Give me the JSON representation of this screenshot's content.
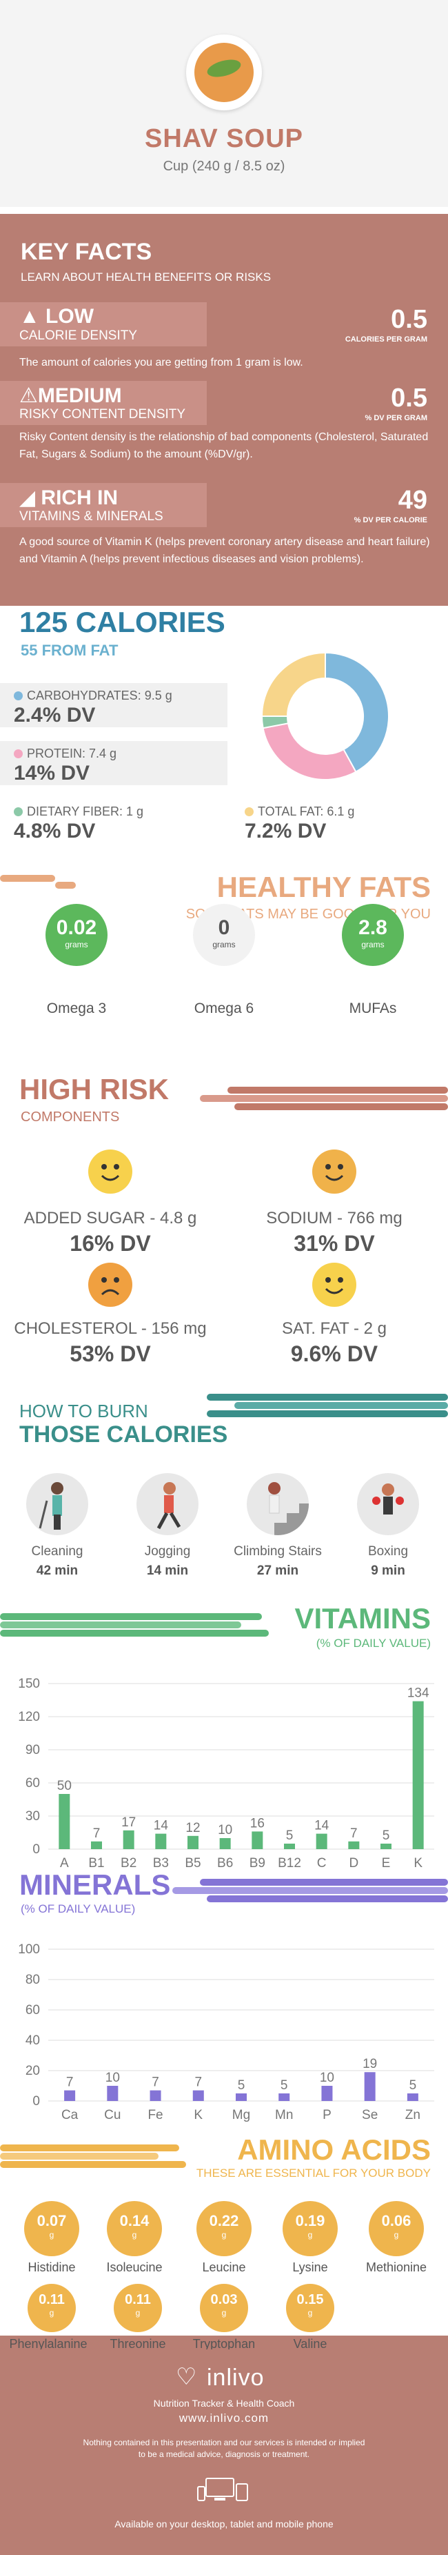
{
  "hero": {
    "title": "SHAV SOUP",
    "serving": "Cup (240 g / 8.5 oz)"
  },
  "key_facts": {
    "heading": "KEY FACTS",
    "subheading": "LEARN ABOUT HEALTH BENEFITS OR RISKS",
    "items": [
      {
        "level": "LOW",
        "label": "CALORIE DENSITY",
        "value": "0.5",
        "unit": "CALORIES PER GRAM",
        "desc": "The amount of calories you are getting from 1 gram is low."
      },
      {
        "level": "MEDIUM",
        "label": "RISKY CONTENT DENSITY",
        "value": "0.5",
        "unit": "% DV PER GRAM",
        "desc": "Risky Content density is the relationship of bad components (Cholesterol, Saturated Fat, Sugars & Sodium) to the amount (%DV/gr)."
      },
      {
        "level": "RICH  IN",
        "label": "VITAMINS & MINERALS",
        "value": "49",
        "unit": "% DV PER CALORIE",
        "desc": "A good source of Vitamin K (helps prevent coronary artery disease and heart failure) and Vitamin A (helps prevent infectious diseases and vision problems)."
      }
    ]
  },
  "calories": {
    "heading": "125 CALORIES",
    "from_fat": "55 FROM FAT",
    "carbs": {
      "label": "CARBOHYDRATES: 9.5 g",
      "dv": "2.4% DV",
      "color": "#7fb8dc"
    },
    "protein": {
      "label": "PROTEIN: 7.4 g",
      "dv": "14% DV",
      "color": "#f4a7c1"
    },
    "fiber": {
      "label": "DIETARY FIBER: 1 g",
      "dv": "4.8% DV",
      "color": "#8cc9a8"
    },
    "fat": {
      "label": "TOTAL FAT: 6.1 g",
      "dv": "7.2% DV",
      "color": "#f7d58a"
    },
    "donut_shares": [
      0.42,
      0.3,
      0.03,
      0.25
    ]
  },
  "healthy_fats": {
    "heading": "HEALTHY FATS",
    "subheading": "SOME FATS MAY BE GOOD FOR YOU",
    "items": [
      {
        "value": "0.02",
        "unit": "grams",
        "label": "Omega 3"
      },
      {
        "value": "0",
        "unit": "grams",
        "label": "Omega 6"
      },
      {
        "value": "2.8",
        "unit": "grams",
        "label": "MUFAs"
      }
    ]
  },
  "high_risk": {
    "heading": "HIGH RISK",
    "subheading": "COMPONENTS",
    "items": [
      {
        "label": "ADDED SUGAR - 4.8 g",
        "dv": "16% DV",
        "mood": "happy"
      },
      {
        "label": "SODIUM - 766 mg",
        "dv": "31% DV",
        "mood": "happy"
      },
      {
        "label": "CHOLESTEROL - 156 mg",
        "dv": "53% DV",
        "mood": "sad"
      },
      {
        "label": "SAT. FAT - 2 g",
        "dv": "9.6% DV",
        "mood": "happy"
      }
    ]
  },
  "burn": {
    "heading1": "HOW TO BURN",
    "heading2": "THOSE CALORIES",
    "items": [
      {
        "label": "Cleaning",
        "time": "42 min"
      },
      {
        "label": "Jogging",
        "time": "14 min"
      },
      {
        "label": "Climbing Stairs",
        "time": "27 min"
      },
      {
        "label": "Boxing",
        "time": "9 min"
      }
    ]
  },
  "vitamins": {
    "heading": "VITAMINS",
    "subheading": "(% OF DAILY VALUE)"
  },
  "minerals": {
    "heading": "MINERALS",
    "subheading": "(% OF DAILY VALUE)"
  },
  "chart_data": [
    {
      "type": "bar",
      "categories": [
        "A",
        "B1",
        "B2",
        "B3",
        "B5",
        "B6",
        "B9",
        "B12",
        "C",
        "D",
        "E",
        "K"
      ],
      "values": [
        50,
        7,
        17,
        14,
        12,
        10,
        16,
        5,
        14,
        7,
        5,
        134
      ],
      "ylim": [
        0,
        150
      ],
      "yticks": [
        0,
        30,
        60,
        90,
        120,
        150
      ],
      "color": "#5cb87a",
      "grid": true
    },
    {
      "type": "bar",
      "categories": [
        "Ca",
        "Cu",
        "Fe",
        "K",
        "Mg",
        "Mn",
        "P",
        "Se",
        "Zn"
      ],
      "values": [
        7,
        10,
        7,
        7,
        5,
        5,
        10,
        19,
        5
      ],
      "ylim": [
        0,
        100
      ],
      "yticks": [
        0,
        20,
        40,
        60,
        80,
        100
      ],
      "color": "#8474d6",
      "grid": true
    }
  ],
  "amino": {
    "heading": "AMINO ACIDS",
    "subheading": "THESE ARE ESSENTIAL FOR YOUR BODY",
    "unit": "g",
    "items": [
      {
        "value": "0.07",
        "label": "Histidine"
      },
      {
        "value": "0.14",
        "label": "Isoleucine"
      },
      {
        "value": "0.22",
        "label": "Leucine"
      },
      {
        "value": "0.19",
        "label": "Lysine"
      },
      {
        "value": "0.06",
        "label": "Methionine"
      },
      {
        "value": "0.11",
        "label": "Phenylalanine"
      },
      {
        "value": "0.11",
        "label": "Threonine"
      },
      {
        "value": "0.03",
        "label": "Tryptophan"
      },
      {
        "value": "0.15",
        "label": "Valine"
      }
    ]
  },
  "footer": {
    "brand": "inlivo",
    "tagline": "Nutrition Tracker & Health Coach",
    "url": "www.inlivo.com",
    "disclaimer1": "Nothing contained in this presentation and our services is intended or implied",
    "disclaimer2": "to be a medical advice, diagnosis or treatment.",
    "available": "Available on your desktop, tablet and mobile phone"
  },
  "colors": {
    "primary": "#b87e73",
    "calories": "#2f7fa3",
    "fats": "#e8a97f",
    "risk": "#c17968",
    "burn": "#3a8f8a",
    "vitamins": "#5cb87a",
    "minerals": "#8474d6",
    "amino": "#efb54d"
  }
}
